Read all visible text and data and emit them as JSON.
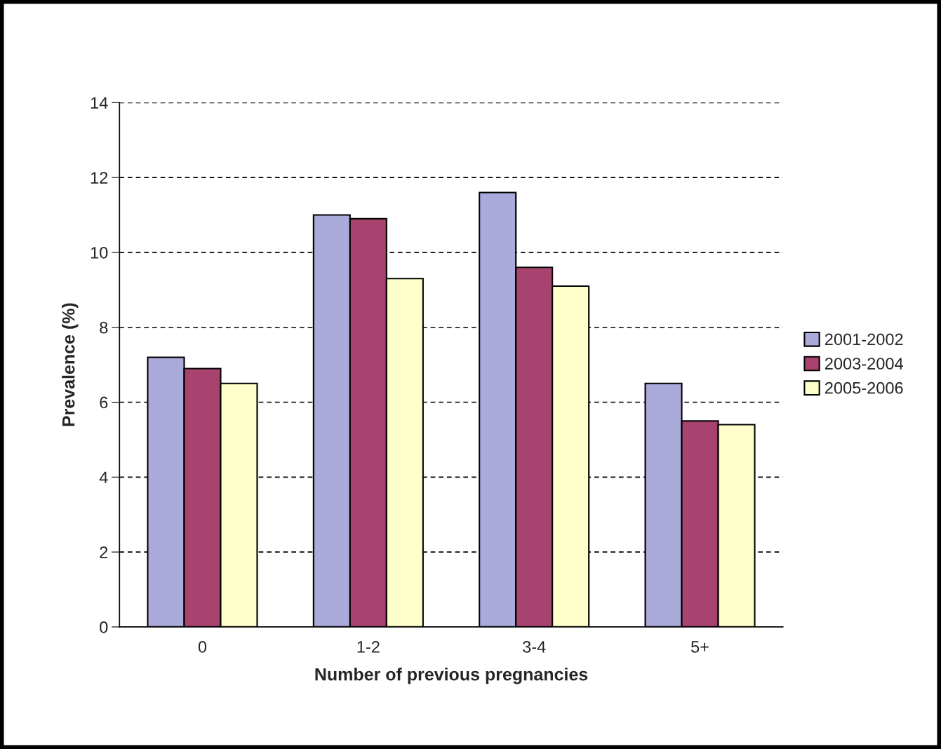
{
  "chart_data": {
    "type": "bar",
    "xlabel": "Number of previous pregnancies",
    "ylabel": "Prevalence (%)",
    "categories": [
      "0",
      "1-2",
      "3-4",
      "5+"
    ],
    "series": [
      {
        "name": "2001-2002",
        "color": "#aaaadb",
        "values": [
          7.2,
          11.0,
          11.6,
          6.5
        ]
      },
      {
        "name": "2003-2004",
        "color": "#a8436f",
        "values": [
          6.9,
          10.9,
          9.6,
          5.5
        ]
      },
      {
        "name": "2005-2006",
        "color": "#ffffcc",
        "values": [
          6.5,
          9.3,
          9.1,
          5.4
        ]
      }
    ],
    "ylim": [
      0,
      14
    ],
    "yticks": [
      0,
      2,
      4,
      6,
      8,
      10,
      12,
      14
    ],
    "grid": "y",
    "line_style": "dashed",
    "legend": "right"
  }
}
